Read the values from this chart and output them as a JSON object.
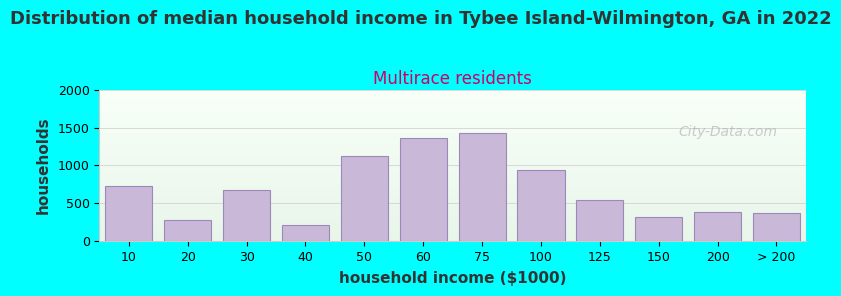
{
  "title": "Distribution of median household income in Tybee Island-Wilmington, GA in 2022",
  "subtitle": "Multirace residents",
  "xlabel": "household income ($1000)",
  "ylabel": "households",
  "background_color": "#00FFFF",
  "plot_bg_gradient_top": "#e8f5e9",
  "plot_bg_gradient_bottom": "#ffffff",
  "bar_color": "#c9b8d8",
  "bar_edge_color": "#9b89b8",
  "categories": [
    "10",
    "20",
    "30",
    "40",
    "50",
    "60",
    "75",
    "100",
    "125",
    "150",
    "200",
    "> 200"
  ],
  "values": [
    730,
    275,
    680,
    210,
    1130,
    1360,
    1430,
    940,
    545,
    315,
    390,
    370
  ],
  "ylim": [
    0,
    2000
  ],
  "yticks": [
    0,
    500,
    1000,
    1500,
    2000
  ],
  "watermark": "City-Data.com",
  "title_fontsize": 13,
  "subtitle_fontsize": 12,
  "subtitle_color": "#cc0066",
  "axis_label_fontsize": 11,
  "tick_fontsize": 9,
  "title_color": "#333333"
}
